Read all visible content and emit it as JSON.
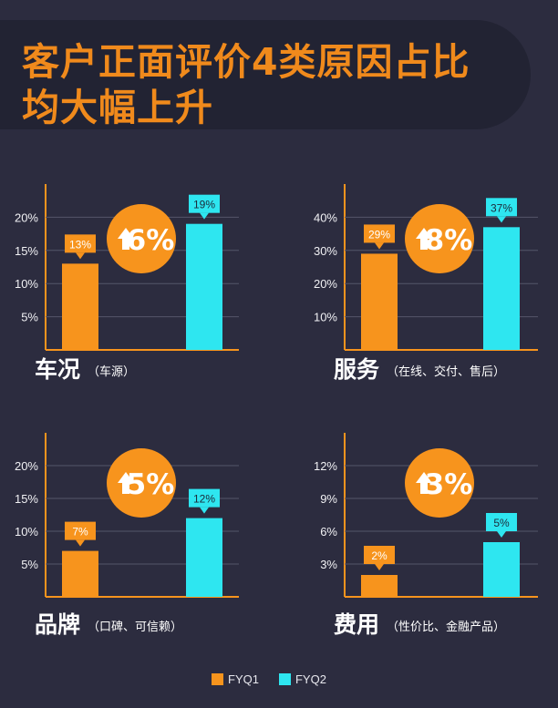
{
  "title": {
    "line1": "客户正面评价4类原因占比",
    "line2": "均大幅上升"
  },
  "colors": {
    "fyq1": "#f7941d",
    "fyq2": "#2ee6f0",
    "badge": "#f7941d",
    "bg": "#2c2c3f"
  },
  "legend": {
    "fyq1": "FYQ1",
    "fyq2": "FYQ2"
  },
  "chart_data": [
    {
      "type": "bar",
      "name": "车况",
      "subtitle": "（车源）",
      "series": [
        {
          "name": "FYQ1",
          "value": 13,
          "label": "13%"
        },
        {
          "name": "FYQ2",
          "value": 19,
          "label": "19%"
        }
      ],
      "ticks": [
        5,
        10,
        15,
        20
      ],
      "tick_labels": [
        "5%",
        "10%",
        "15%",
        "20%"
      ],
      "ymax": 25,
      "increase": "6%"
    },
    {
      "type": "bar",
      "name": "服务",
      "subtitle": "（在线、交付、售后）",
      "series": [
        {
          "name": "FYQ1",
          "value": 29,
          "label": "29%"
        },
        {
          "name": "FYQ2",
          "value": 37,
          "label": "37%"
        }
      ],
      "ticks": [
        10,
        20,
        30,
        40
      ],
      "tick_labels": [
        "10%",
        "20%",
        "30%",
        "40%"
      ],
      "ymax": 50,
      "increase": "8%"
    },
    {
      "type": "bar",
      "name": "品牌",
      "subtitle": "（口碑、可信赖）",
      "series": [
        {
          "name": "FYQ1",
          "value": 7,
          "label": "7%"
        },
        {
          "name": "FYQ2",
          "value": 12,
          "label": "12%"
        }
      ],
      "ticks": [
        5,
        10,
        15,
        20
      ],
      "tick_labels": [
        "5%",
        "10%",
        "15%",
        "20%"
      ],
      "ymax": 25,
      "increase": "5%"
    },
    {
      "type": "bar",
      "name": "费用",
      "subtitle": "（性价比、金融产品）",
      "series": [
        {
          "name": "FYQ1",
          "value": 2,
          "label": "2%"
        },
        {
          "name": "FYQ2",
          "value": 5,
          "label": "5%"
        }
      ],
      "ticks": [
        3,
        6,
        9,
        12
      ],
      "tick_labels": [
        "3%",
        "6%",
        "9%",
        "12%"
      ],
      "ymax": 15,
      "increase": "3%"
    }
  ]
}
